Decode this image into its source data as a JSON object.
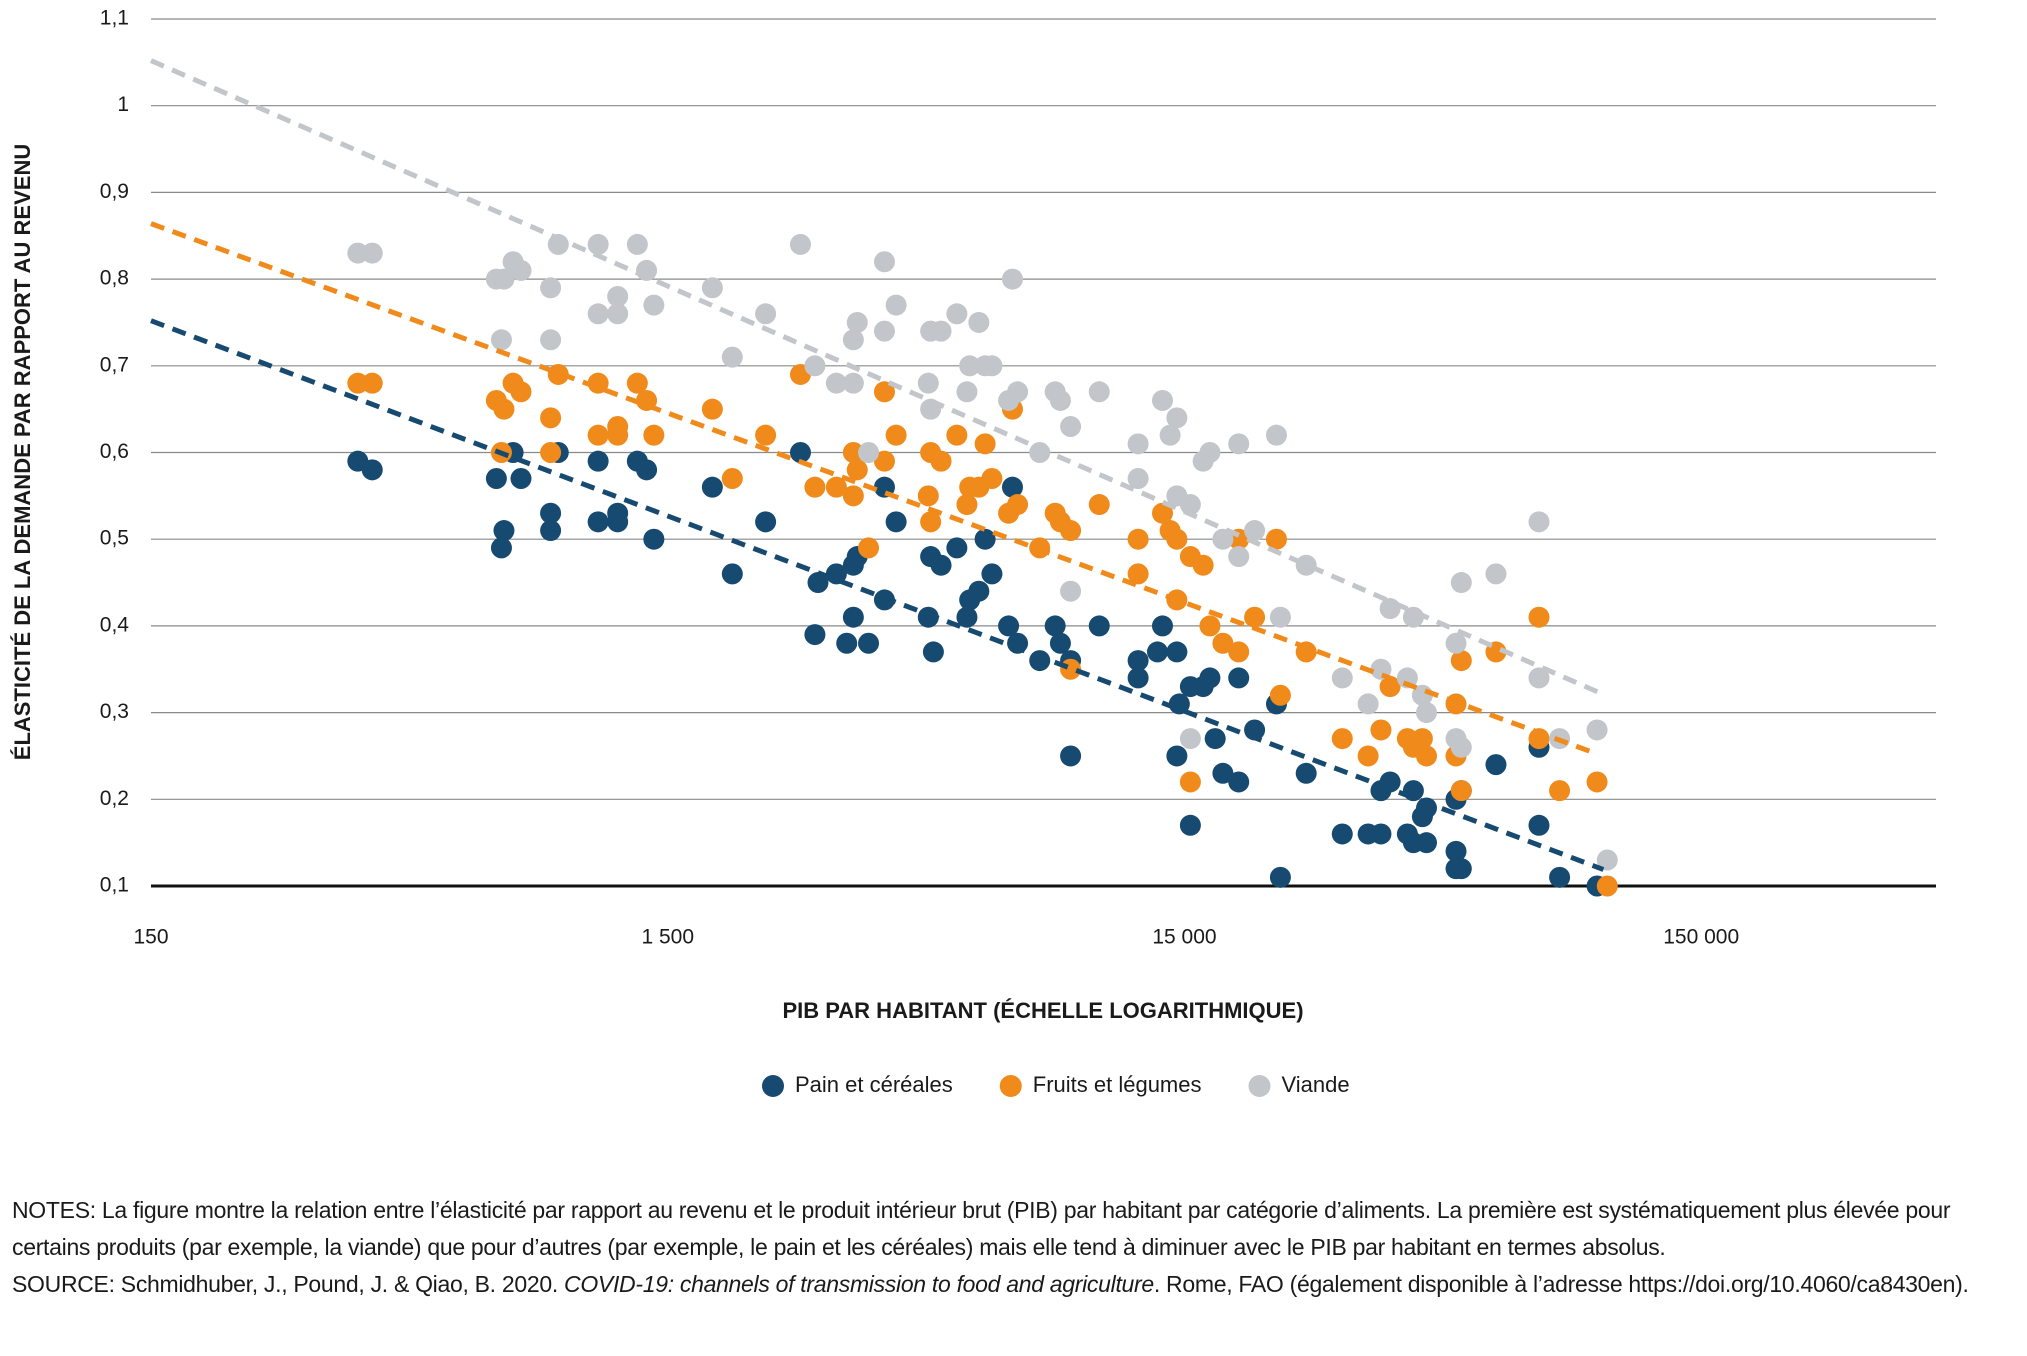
{
  "chart_data": {
    "type": "scatter",
    "x_label": "PIB PAR HABITANT (ÉCHELLE LOGARITHMIQUE)",
    "y_label": "ÉLASTICITÉ DE LA DEMANDE PAR RAPPORT AU REVENU",
    "x_log": true,
    "grid": true,
    "xlim": [
      150,
      427000
    ],
    "ylim": [
      0.1,
      1.1
    ],
    "xticks": [
      150,
      {
        "value": 1500,
        "label": "1 500"
      },
      {
        "value": 15000,
        "label": "15 000"
      },
      {
        "value": 150000,
        "label": "150 000"
      }
    ],
    "yticks": [
      {
        "value": 0.1,
        "label": "0,1"
      },
      {
        "value": 0.2,
        "label": "0,2"
      },
      {
        "value": 0.3,
        "label": "0,3"
      },
      {
        "value": 0.4,
        "label": "0,4"
      },
      {
        "value": 0.5,
        "label": "0,5"
      },
      {
        "value": 0.6,
        "label": "0,6"
      },
      {
        "value": 0.7,
        "label": "0,7"
      },
      {
        "value": 0.8,
        "label": "0,8"
      },
      {
        "value": 0.9,
        "label": "0,9"
      },
      1,
      {
        "value": 1.1,
        "label": "1,1"
      }
    ],
    "legend": "bottom",
    "series": [
      {
        "name": "Pain et céréales",
        "color": "#174a70",
        "x": [
          377,
          402,
          699,
          715,
          723,
          753,
          780,
          890,
          890,
          921,
          1100,
          1100,
          1200,
          1200,
          1310,
          1365,
          1410,
          1830,
          2000,
          2320,
          2710,
          2890,
          2930,
          3180,
          3330,
          3430,
          3430,
          3490,
          3670,
          3940,
          3940,
          4150,
          4790,
          4840,
          4900,
          5070,
          5440,
          5690,
          5760,
          6000,
          6170,
          6360,
          6850,
          6970,
          7130,
          7870,
          8430,
          8630,
          9030,
          9030,
          10260,
          12200,
          12200,
          13600,
          13300,
          14500,
          14500,
          14660,
          15400,
          15400,
          16300,
          16800,
          17200,
          17800,
          19100,
          19100,
          20500,
          22600,
          23000,
          25800,
          30300,
          34000,
          36000,
          36000,
          37500,
          40500,
          41600,
          41600,
          43300,
          44100,
          44100,
          50300,
          50300,
          50300,
          51500,
          51500,
          60100,
          72800,
          72800,
          79800,
          94300
        ],
        "y": [
          0.59,
          0.58,
          0.57,
          0.49,
          0.51,
          0.6,
          0.57,
          0.53,
          0.51,
          0.6,
          0.59,
          0.52,
          0.52,
          0.53,
          0.59,
          0.58,
          0.5,
          0.56,
          0.46,
          0.52,
          0.6,
          0.39,
          0.45,
          0.46,
          0.38,
          0.41,
          0.47,
          0.48,
          0.38,
          0.43,
          0.56,
          0.52,
          0.41,
          0.48,
          0.37,
          0.47,
          0.49,
          0.41,
          0.43,
          0.44,
          0.5,
          0.46,
          0.4,
          0.56,
          0.38,
          0.36,
          0.4,
          0.38,
          0.36,
          0.25,
          0.4,
          0.36,
          0.34,
          0.4,
          0.37,
          0.37,
          0.25,
          0.31,
          0.33,
          0.17,
          0.33,
          0.34,
          0.27,
          0.23,
          0.34,
          0.22,
          0.28,
          0.31,
          0.11,
          0.23,
          0.16,
          0.16,
          0.16,
          0.21,
          0.22,
          0.16,
          0.15,
          0.21,
          0.18,
          0.19,
          0.15,
          0.2,
          0.14,
          0.12,
          0.12,
          0.21,
          0.24,
          0.26,
          0.17,
          0.11,
          0.1
        ],
        "trend": {
          "x": [
            150,
            97000
          ],
          "y": [
            0.752,
            0.119
          ]
        }
      },
      {
        "name": "Fruits et légumes",
        "color": "#f08a1a",
        "x": [
          377,
          402,
          699,
          715,
          723,
          753,
          780,
          890,
          890,
          921,
          1100,
          1100,
          1200,
          1200,
          1310,
          1365,
          1410,
          1830,
          2000,
          2320,
          2710,
          2890,
          3180,
          3430,
          3430,
          3490,
          3670,
          3940,
          3940,
          4150,
          4790,
          4840,
          4840,
          5070,
          5440,
          5690,
          5760,
          6000,
          6170,
          6360,
          6850,
          6970,
          7130,
          7870,
          8430,
          8630,
          9030,
          9030,
          10260,
          12200,
          12200,
          13600,
          14070,
          14500,
          14500,
          15400,
          15400,
          16300,
          16800,
          17800,
          19100,
          19100,
          20500,
          22600,
          23000,
          25800,
          30300,
          34000,
          36000,
          37500,
          40500,
          41600,
          43300,
          44100,
          50300,
          50300,
          51500,
          51500,
          60100,
          72800,
          72800,
          79800,
          94300,
          98700
        ],
        "y": [
          0.68,
          0.68,
          0.66,
          0.6,
          0.65,
          0.68,
          0.67,
          0.64,
          0.6,
          0.69,
          0.68,
          0.62,
          0.63,
          0.62,
          0.68,
          0.66,
          0.62,
          0.65,
          0.57,
          0.62,
          0.69,
          0.56,
          0.56,
          0.55,
          0.6,
          0.58,
          0.49,
          0.59,
          0.67,
          0.62,
          0.55,
          0.52,
          0.6,
          0.59,
          0.62,
          0.54,
          0.56,
          0.56,
          0.61,
          0.57,
          0.53,
          0.65,
          0.54,
          0.49,
          0.53,
          0.52,
          0.51,
          0.35,
          0.54,
          0.5,
          0.46,
          0.53,
          0.51,
          0.5,
          0.43,
          0.48,
          0.22,
          0.47,
          0.4,
          0.38,
          0.37,
          0.5,
          0.41,
          0.5,
          0.32,
          0.37,
          0.27,
          0.25,
          0.28,
          0.33,
          0.27,
          0.26,
          0.27,
          0.25,
          0.31,
          0.25,
          0.21,
          0.36,
          0.37,
          0.41,
          0.27,
          0.21,
          0.22,
          0.1
        ],
        "trend": {
          "x": [
            150,
            92700
          ],
          "y": [
            0.864,
            0.254
          ]
        }
      },
      {
        "name": "Viande",
        "color": "#c2c5c9",
        "x": [
          377,
          402,
          699,
          715,
          723,
          753,
          780,
          890,
          890,
          921,
          1100,
          1100,
          1200,
          1200,
          1310,
          1365,
          1410,
          1830,
          2000,
          2320,
          2710,
          2890,
          3180,
          3430,
          3430,
          3490,
          3670,
          3940,
          3940,
          4150,
          4790,
          4840,
          4840,
          5070,
          5440,
          5690,
          5760,
          6000,
          6170,
          6360,
          6850,
          6970,
          7130,
          7870,
          8430,
          8630,
          9030,
          9030,
          10260,
          12200,
          12200,
          13600,
          14070,
          14500,
          14500,
          15400,
          15400,
          16300,
          16800,
          17800,
          19100,
          19100,
          20500,
          22600,
          23000,
          25800,
          30300,
          34000,
          36000,
          37500,
          40500,
          41600,
          43300,
          44100,
          50300,
          50300,
          51500,
          51500,
          60100,
          72800,
          72800,
          79800,
          94300,
          98700
        ],
        "y": [
          0.83,
          0.83,
          0.8,
          0.73,
          0.8,
          0.82,
          0.81,
          0.79,
          0.73,
          0.84,
          0.84,
          0.76,
          0.78,
          0.76,
          0.84,
          0.81,
          0.77,
          0.79,
          0.71,
          0.76,
          0.84,
          0.7,
          0.68,
          0.73,
          0.68,
          0.75,
          0.6,
          0.74,
          0.82,
          0.77,
          0.68,
          0.74,
          0.65,
          0.74,
          0.76,
          0.67,
          0.7,
          0.75,
          0.7,
          0.7,
          0.66,
          0.8,
          0.67,
          0.6,
          0.67,
          0.66,
          0.63,
          0.44,
          0.67,
          0.61,
          0.57,
          0.66,
          0.62,
          0.64,
          0.55,
          0.54,
          0.27,
          0.59,
          0.6,
          0.5,
          0.48,
          0.61,
          0.51,
          0.62,
          0.41,
          0.47,
          0.34,
          0.31,
          0.35,
          0.42,
          0.34,
          0.41,
          0.32,
          0.3,
          0.38,
          0.27,
          0.26,
          0.45,
          0.46,
          0.52,
          0.34,
          0.27,
          0.28,
          0.13
        ],
        "trend": {
          "x": [
            150,
            97000
          ],
          "y": [
            1.052,
            0.321
          ]
        }
      }
    ],
    "notes": "NOTES: La figure montre la relation entre l’élasticité par rapport au revenu et le produit intérieur brut (PIB) par habitant par catégorie d’aliments. La première est systématiquement plus élevée pour certains produits (par exemple, la viande) que pour d’autres (par exemple, le pain et les céréales) mais elle tend à diminuer avec le PIB par habitant en termes absolus.",
    "source": {
      "before": "SOURCE: Schmidhuber, J., Pound, J. & Qiao, B. 2020. ",
      "italic": "COVID-19: channels of transmission to food and agriculture",
      "after": ". Rome, FAO (également disponible à l’adresse https://doi.org/10.4060/ca8430en)."
    }
  }
}
